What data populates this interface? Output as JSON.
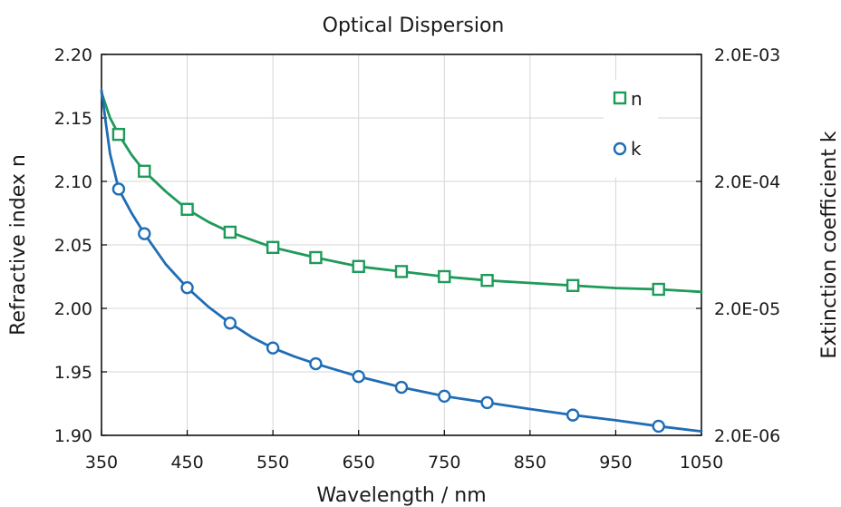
{
  "chart_data": {
    "type": "line",
    "title": "Optical Dispersion",
    "xlabel": "Wavelength / nm",
    "ylabel": "Refractive index n",
    "y2label": "Extinction coefficient k",
    "xlim": [
      350,
      1050
    ],
    "ylim": [
      1.9,
      2.2
    ],
    "y2lim": [
      2e-06,
      0.002
    ],
    "y2scale": "log",
    "x_ticks": [
      "350",
      "450",
      "550",
      "650",
      "750",
      "850",
      "950",
      "1050"
    ],
    "y_ticks": [
      "1.90",
      "1.95",
      "2.00",
      "2.05",
      "2.10",
      "2.15",
      "2.20"
    ],
    "y2_ticks": [
      "2.0E-06",
      "2.0E-05",
      "2.0E-04",
      "2.0E-03"
    ],
    "grid": true,
    "legend": "top-right",
    "colors": {
      "n": "#1e9a5a",
      "k": "#1f6db5"
    },
    "series": [
      {
        "name": "n",
        "axis": "left",
        "marker": "square",
        "color": "#1e9a5a",
        "points": [
          [
            370,
            2.137
          ],
          [
            400,
            2.108
          ],
          [
            450,
            2.078
          ],
          [
            500,
            2.06
          ],
          [
            550,
            2.048
          ],
          [
            600,
            2.04
          ],
          [
            650,
            2.033
          ],
          [
            700,
            2.029
          ],
          [
            750,
            2.025
          ],
          [
            800,
            2.022
          ],
          [
            900,
            2.018
          ],
          [
            1000,
            2.015
          ]
        ],
        "curve": [
          [
            350,
            2.17
          ],
          [
            360,
            2.15
          ],
          [
            370,
            2.137
          ],
          [
            385,
            2.121
          ],
          [
            400,
            2.108
          ],
          [
            425,
            2.092
          ],
          [
            450,
            2.078
          ],
          [
            475,
            2.068
          ],
          [
            500,
            2.06
          ],
          [
            525,
            2.054
          ],
          [
            550,
            2.048
          ],
          [
            575,
            2.044
          ],
          [
            600,
            2.04
          ],
          [
            650,
            2.033
          ],
          [
            700,
            2.029
          ],
          [
            750,
            2.025
          ],
          [
            800,
            2.022
          ],
          [
            850,
            2.02
          ],
          [
            900,
            2.018
          ],
          [
            950,
            2.016
          ],
          [
            1000,
            2.015
          ],
          [
            1050,
            2.013
          ]
        ]
      },
      {
        "name": "k",
        "axis": "right",
        "marker": "circle",
        "color": "#1f6db5",
        "points": [
          [
            370,
            0.000174
          ],
          [
            400,
            7.75e-05
          ],
          [
            450,
            2.91e-05
          ],
          [
            500,
            1.53e-05
          ],
          [
            550,
            9.75e-06
          ],
          [
            600,
            7.33e-06
          ],
          [
            650,
            5.81e-06
          ],
          [
            700,
            4.78e-06
          ],
          [
            750,
            4.07e-06
          ],
          [
            800,
            3.62e-06
          ],
          [
            900,
            2.89e-06
          ],
          [
            1000,
            2.36e-06
          ]
        ],
        "curve": [
          [
            350,
            0.00105
          ],
          [
            355,
            0.00058
          ],
          [
            360,
            0.00033
          ],
          [
            370,
            0.000174
          ],
          [
            385,
            0.000113
          ],
          [
            400,
            7.75e-05
          ],
          [
            425,
            4.45e-05
          ],
          [
            450,
            2.91e-05
          ],
          [
            475,
            2.05e-05
          ],
          [
            500,
            1.53e-05
          ],
          [
            525,
            1.19e-05
          ],
          [
            550,
            9.75e-06
          ],
          [
            575,
            8.35e-06
          ],
          [
            600,
            7.33e-06
          ],
          [
            650,
            5.81e-06
          ],
          [
            700,
            4.78e-06
          ],
          [
            750,
            4.07e-06
          ],
          [
            800,
            3.62e-06
          ],
          [
            850,
            3.22e-06
          ],
          [
            900,
            2.89e-06
          ],
          [
            950,
            2.63e-06
          ],
          [
            1000,
            2.36e-06
          ],
          [
            1050,
            2.15e-06
          ]
        ]
      }
    ]
  }
}
